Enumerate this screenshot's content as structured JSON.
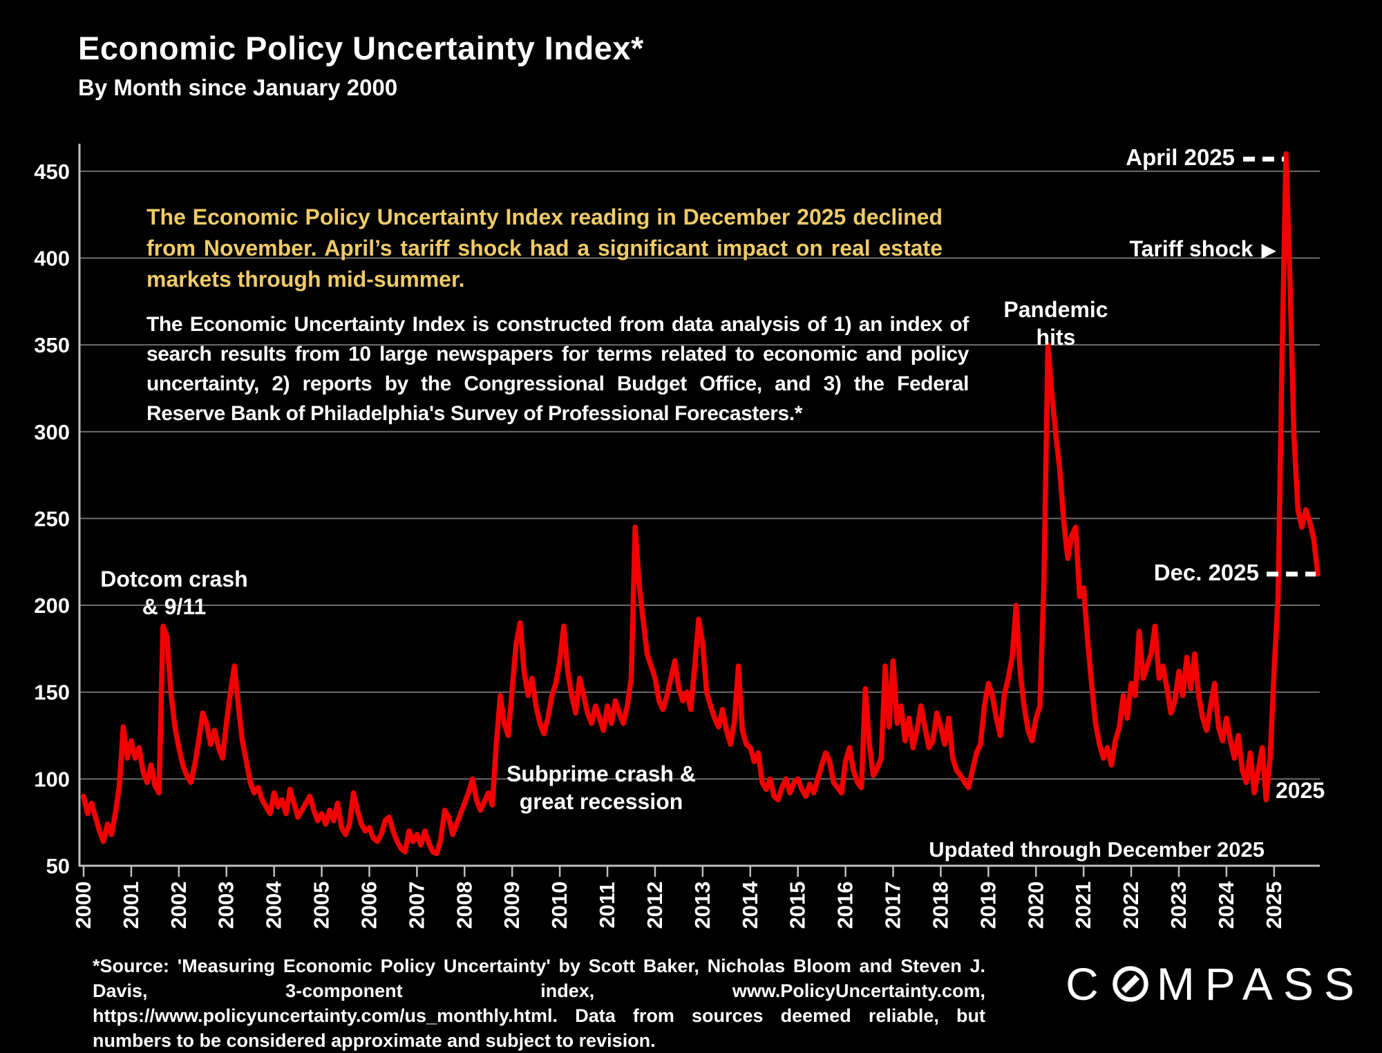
{
  "header": {
    "title": "Economic Policy Uncertainty Index*",
    "subtitle": "By Month since January 2000"
  },
  "commentary": {
    "highlight": "The Economic Policy Uncertainty Index reading in December 2025 declined from November. April’s tariff shock had a significant impact on real estate markets through mid-summer.",
    "body": "The Economic Uncertainty Index is constructed from data analysis of 1) an index of search results from 10 large newspapers for terms related to economic and policy uncertainty, 2) reports by the Congressional Budget Office, and 3) the Federal Reserve Bank of Philadelphia's Survey of Professional Forecasters.*"
  },
  "annotations": {
    "dotcom_line1": "Dotcom crash",
    "dotcom_line2": "& 9/11",
    "subprime_line1": "Subprime crash &",
    "subprime_line2": "great recession",
    "pandemic_line1": "Pandemic",
    "pandemic_line2": "hits",
    "april": "April 2025",
    "tariff": "Tariff shock",
    "tariff_arrow": "▶",
    "dec": "Dec. 2025",
    "year_end": "2025",
    "updated": "Updated through December 2025"
  },
  "footer": {
    "source": "*Source: 'Measuring Economic Policy Uncertainty' by Scott Baker, Nicholas Bloom and Steven J. Davis, 3-component index, www.PolicyUncertainty.com, https://www.policyuncertainty.com/us_monthly.html. Data from sources deemed reliable, but numbers to be considered approximate and subject to revision.",
    "brand": "COMPASS"
  },
  "colors": {
    "line": "#f40000",
    "highlight_text": "#efcb68",
    "grid": "#6e6e6e",
    "axis": "#c0c0c0",
    "annotation": "#ffffff"
  },
  "chart_data": {
    "type": "line",
    "title": "Economic Policy Uncertainty Index by Month",
    "x_start": "2000-01",
    "x_end": "2025-12",
    "x_tick_labels": [
      "2000",
      "2001",
      "2002",
      "2003",
      "2004",
      "2005",
      "2006",
      "2007",
      "2008",
      "2009",
      "2010",
      "2011",
      "2012",
      "2013",
      "2014",
      "2015",
      "2016",
      "2017",
      "2018",
      "2019",
      "2020",
      "2021",
      "2022",
      "2023",
      "2024",
      "2025"
    ],
    "y_ticks": [
      50,
      100,
      150,
      200,
      250,
      300,
      350,
      400,
      450
    ],
    "ylim": [
      50,
      475
    ],
    "grid": true,
    "legend": "none",
    "key_points": {
      "sep_2001_dotcom_911": 188,
      "aug_2011_peak": 245,
      "apr_2020_pandemic": 350,
      "apr_2025_tariff_shock": 460,
      "dec_2025": 218
    },
    "series": [
      {
        "name": "Economic Policy Uncertainty Index (monthly)",
        "values": [
          90,
          80,
          86,
          78,
          70,
          64,
          74,
          68,
          80,
          96,
          130,
          112,
          122,
          112,
          118,
          104,
          98,
          108,
          96,
          92,
          188,
          182,
          150,
          130,
          118,
          108,
          102,
          98,
          108,
          122,
          138,
          132,
          120,
          128,
          118,
          112,
          132,
          150,
          165,
          142,
          122,
          110,
          98,
          92,
          95,
          88,
          84,
          80,
          92,
          84,
          88,
          80,
          94,
          86,
          78,
          82,
          86,
          90,
          82,
          76,
          80,
          74,
          82,
          76,
          86,
          72,
          68,
          74,
          92,
          82,
          74,
          70,
          72,
          66,
          64,
          68,
          76,
          78,
          70,
          64,
          60,
          58,
          70,
          64,
          68,
          62,
          70,
          63,
          58,
          57,
          65,
          82,
          78,
          68,
          74,
          80,
          86,
          92,
          100,
          88,
          82,
          87,
          92,
          85,
          120,
          148,
          132,
          125,
          152,
          178,
          190,
          162,
          148,
          158,
          142,
          132,
          126,
          135,
          148,
          155,
          168,
          188,
          162,
          148,
          138,
          158,
          148,
          138,
          132,
          142,
          135,
          128,
          142,
          132,
          145,
          138,
          132,
          142,
          158,
          245,
          212,
          192,
          172,
          165,
          158,
          145,
          140,
          148,
          158,
          168,
          152,
          145,
          150,
          140,
          165,
          192,
          178,
          150,
          142,
          135,
          130,
          140,
          128,
          120,
          133,
          165,
          128,
          120,
          118,
          110,
          115,
          98,
          94,
          100,
          90,
          88,
          95,
          100,
          92,
          98,
          100,
          94,
          90,
          97,
          92,
          100,
          108,
          115,
          110,
          98,
          95,
          92,
          110,
          118,
          105,
          98,
          95,
          152,
          120,
          102,
          106,
          112,
          165,
          130,
          168,
          132,
          142,
          122,
          135,
          118,
          128,
          142,
          130,
          118,
          122,
          138,
          130,
          120,
          135,
          112,
          105,
          102,
          98,
          95,
          105,
          115,
          120,
          142,
          155,
          148,
          135,
          125,
          148,
          158,
          170,
          200,
          162,
          142,
          128,
          122,
          135,
          142,
          212,
          350,
          322,
          298,
          278,
          248,
          227,
          240,
          245,
          205,
          210,
          180,
          155,
          132,
          120,
          112,
          118,
          108,
          122,
          130,
          148,
          135,
          155,
          148,
          185,
          158,
          165,
          172,
          188,
          158,
          165,
          152,
          138,
          145,
          162,
          148,
          170,
          152,
          172,
          148,
          135,
          128,
          142,
          155,
          130,
          122,
          135,
          122,
          112,
          125,
          105,
          98,
          115,
          92,
          105,
          118,
          88,
          112,
          162,
          205,
          342,
          460,
          388,
          298,
          255,
          245,
          255,
          248,
          238,
          218
        ]
      }
    ]
  }
}
